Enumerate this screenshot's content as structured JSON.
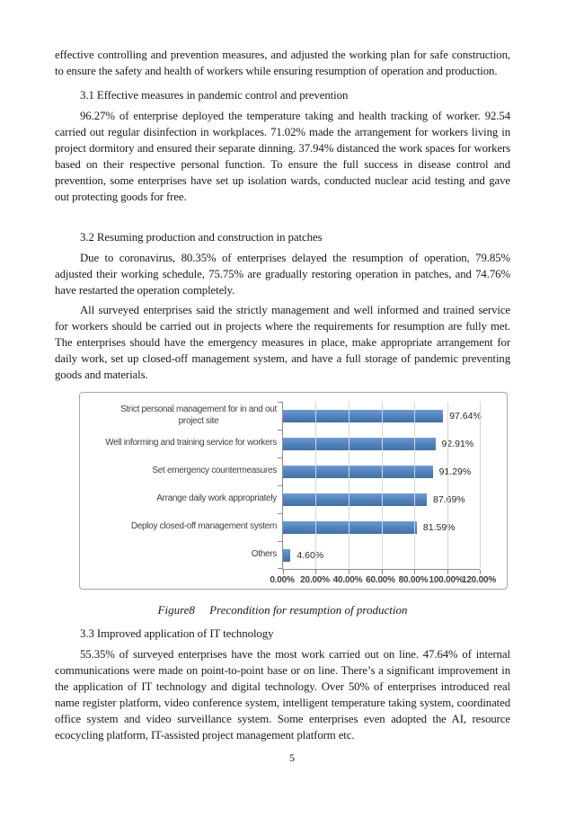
{
  "document": {
    "intro_paragraph": "effective controlling and prevention measures, and adjusted the working plan for safe construction, to ensure the safety and health of workers while ensuring resumption of operation and production.",
    "sections": [
      {
        "heading": "3.1 Effective measures in pandemic control and prevention",
        "paragraphs": [
          "96.27% of enterprise deployed the temperature taking and health tracking of worker. 92.54 carried out regular disinfection in workplaces. 71.02% made the arrangement for workers living in project dormitory and ensured their separate dinning. 37.94% distanced the work spaces for workers based on their respective personal function. To ensure the full success in disease control and prevention, some enterprises have set up isolation wards, conducted nuclear acid testing and gave out protecting goods for free."
        ]
      },
      {
        "heading": "3.2 Resuming production and construction in patches",
        "paragraphs": [
          "Due to coronavirus, 80.35% of enterprises delayed the resumption of operation, 79.85% adjusted their working schedule, 75.75% are gradually restoring operation in patches, and 74.76% have restarted the operation completely.",
          "All surveyed enterprises said the strictly management and well informed and trained service for workers should be carried out in projects where the requirements for resumption are fully met. The enterprises should have the emergency measures in place, make appropriate arrangement for daily work, set up closed-off management system, and have a full storage of pandemic preventing goods and materials."
        ]
      },
      {
        "heading": "3.3 Improved application of IT technology",
        "paragraphs": [
          "55.35% of surveyed enterprises have the most work carried out on line. 47.64% of internal communications were made on point-to-point base or on line. There’s a significant improvement in the application of IT technology and digital technology. Over 50% of enterprises introduced real name register platform, video conference system, intelligent temperature taking system, coordinated office system and video surveillance system. Some enterprises even adopted the AI, resource ecocycling platform, IT-assisted project management platform etc."
        ]
      }
    ],
    "figure_caption": "Figure8     Precondition for resumption of production",
    "page_number": "5"
  },
  "chart_data": {
    "type": "bar",
    "orientation": "horizontal",
    "title": "",
    "categories": [
      "Strict personal management for in and out\nproject site",
      "Well informing and training service for workers",
      "Set emergency countermeasures",
      "Arrange daily work appropriately",
      "Deploy closed-off management system",
      "Others"
    ],
    "values": [
      97.64,
      92.91,
      91.29,
      87.69,
      81.59,
      4.6
    ],
    "value_labels": [
      "97.64%",
      "92.91%",
      "91.29%",
      "87.69%",
      "81.59%",
      "4.60%"
    ],
    "x_tick_labels": [
      "0.00%",
      "20.00%",
      "40.00%",
      "60.00%",
      "80.00%",
      "100.00%",
      "120.00%"
    ],
    "xlim": [
      0,
      120
    ],
    "grid": true,
    "legend": false,
    "bar_color": "#4f81bd",
    "gridline_color": "#d6d6d6",
    "axis_color": "#8c8c8c"
  }
}
